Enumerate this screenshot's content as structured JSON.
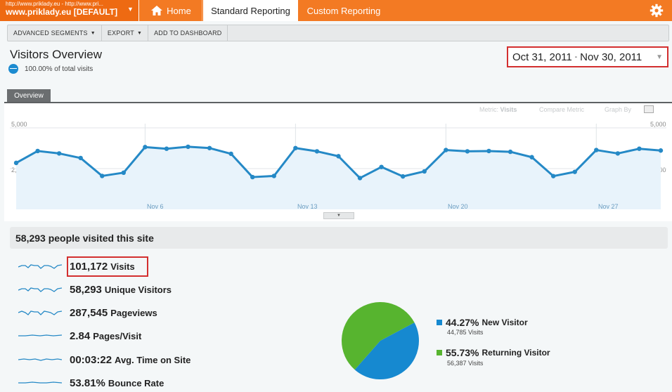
{
  "profile": {
    "url": "http://www.priklady.eu - http://www.pri...",
    "name": "www.priklady.eu [DEFAULT]"
  },
  "nav": {
    "home": "Home",
    "standard": "Standard Reporting",
    "custom": "Custom Reporting"
  },
  "toolbar": {
    "segments": "ADVANCED SEGMENTS",
    "export": "EXPORT",
    "dashboard": "ADD TO DASHBOARD"
  },
  "page": {
    "title": "Visitors Overview",
    "pct_total": "100.00% of total visits",
    "date_start": "Oct 31, 2011",
    "date_sep": "-",
    "date_end": "Nov 30, 2011"
  },
  "tabs": {
    "overview": "Overview"
  },
  "chart_opts": {
    "metric_label": "Metric:",
    "metric_value": "Visits",
    "compare": "Compare Metric",
    "graph_by": "Graph By"
  },
  "chart_data": {
    "type": "line",
    "ylim": [
      0,
      5000
    ],
    "yticks": [
      "5,000",
      "2,500"
    ],
    "xticks": [
      "Nov 6",
      "Nov 13",
      "Nov 20",
      "Nov 27"
    ],
    "series": [
      {
        "values": [
          2850,
          3580,
          3430,
          3150,
          2050,
          2250,
          3820,
          3720,
          3840,
          3760,
          3410,
          1980,
          2050,
          3760,
          3560,
          3260,
          1920,
          2600,
          2020,
          2330,
          3640,
          3560,
          3580,
          3530,
          3200,
          2040,
          2300,
          3640,
          3430,
          3720,
          3610
        ]
      }
    ],
    "color": "#2589c6"
  },
  "summary": {
    "text": "58,293 people visited this site"
  },
  "metrics": [
    {
      "value": "101,172",
      "label": "Visits"
    },
    {
      "value": "58,293",
      "label": "Unique Visitors"
    },
    {
      "value": "287,545",
      "label": "Pageviews"
    },
    {
      "value": "2.84",
      "label": "Pages/Visit"
    },
    {
      "value": "00:03:22",
      "label": "Avg. Time on Site"
    },
    {
      "value": "53.81%",
      "label": "Bounce Rate"
    }
  ],
  "visitor_pie": {
    "new_pct": "44.27%",
    "new_label": "New Visitor",
    "new_visits": "44,785 Visits",
    "new_fraction": 0.4427,
    "new_color": "#1689d0",
    "ret_pct": "55.73%",
    "ret_label": "Returning Visitor",
    "ret_visits": "56,387 Visits",
    "ret_fraction": 0.5573,
    "ret_color": "#57b42f"
  },
  "colors": {
    "brand": "#f37a23",
    "highlight": "#d32f2f"
  }
}
